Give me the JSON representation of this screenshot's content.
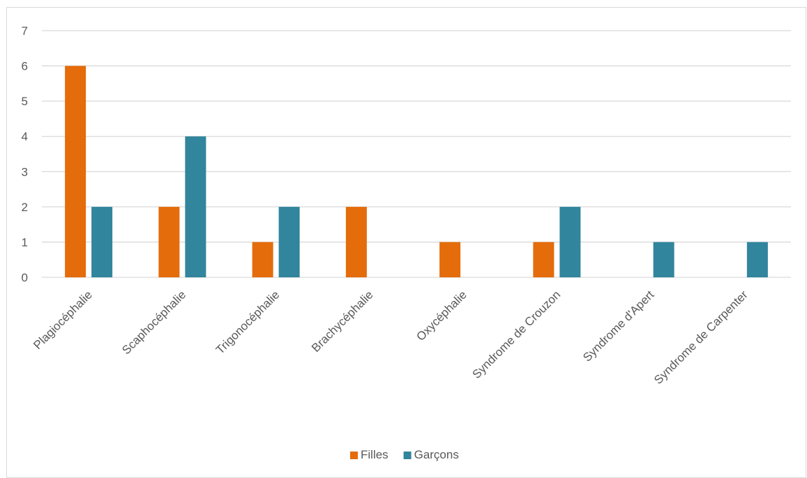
{
  "chart_data": {
    "type": "bar",
    "title": "",
    "xlabel": "",
    "ylabel": "",
    "ylim": [
      0,
      7
    ],
    "yticks": [
      0,
      1,
      2,
      3,
      4,
      5,
      6,
      7
    ],
    "grid": true,
    "legend_position": "bottom",
    "categories": [
      "Plagiocéphalie",
      "Scaphocéphalie",
      "Trigonocéphalie",
      "Brachycéphalie",
      "Oxycéphalie",
      "Syndrome de Crouzon",
      "Syndrome d'Apert",
      "Syndrome de Carpenter"
    ],
    "series": [
      {
        "name": "Filles",
        "color": "#E46C0A",
        "values": [
          6,
          2,
          1,
          2,
          1,
          1,
          0,
          0
        ]
      },
      {
        "name": "Garçons",
        "color": "#31859C",
        "values": [
          2,
          4,
          2,
          0,
          0,
          2,
          1,
          1
        ]
      }
    ]
  }
}
